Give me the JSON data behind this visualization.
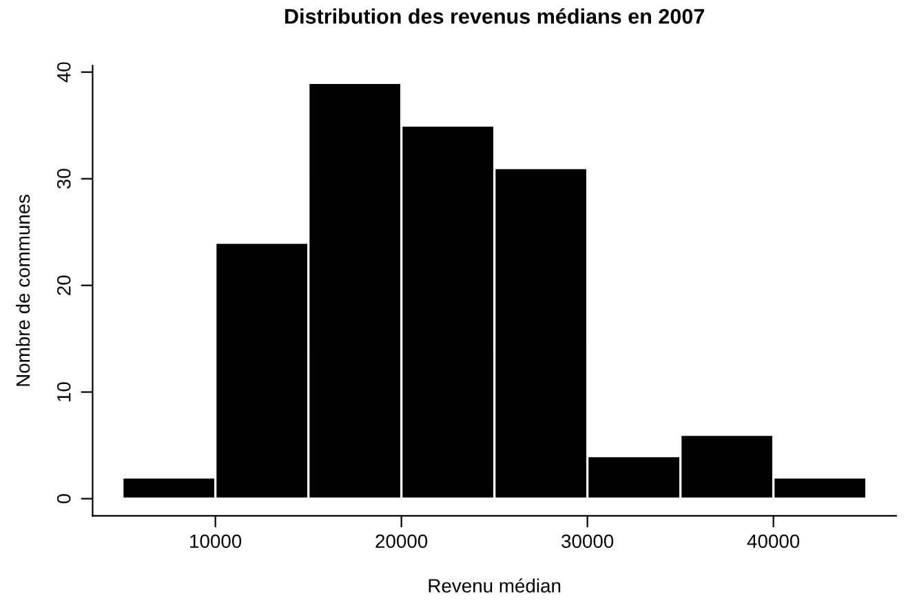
{
  "chart_data": {
    "type": "histogram",
    "title": "Distribution des revenus médians en 2007",
    "xlabel": "Revenu médian",
    "ylabel": "Nombre de communes",
    "bins": [
      5000,
      10000,
      15000,
      20000,
      25000,
      30000,
      35000,
      40000,
      45000
    ],
    "values": [
      2,
      24,
      39,
      35,
      31,
      4,
      6,
      2
    ],
    "color": "#000000",
    "xlim": [
      3400,
      46600
    ],
    "ylim": [
      -1.6,
      40.6
    ],
    "xticks": [
      10000,
      20000,
      30000,
      40000
    ],
    "yticks": [
      0,
      10,
      20,
      30,
      40
    ],
    "grid": false,
    "legend": false
  }
}
